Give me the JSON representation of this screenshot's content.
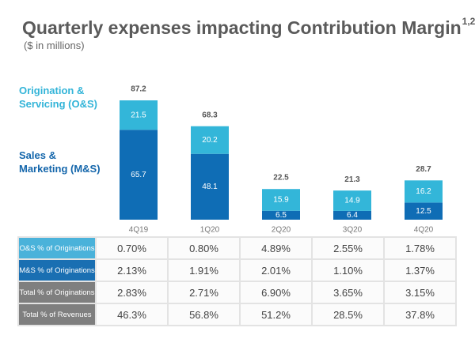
{
  "chart_data": {
    "type": "stacked-bar",
    "title": "Quarterly expenses impacting Contribution Margin",
    "title_note": "1,2",
    "subtitle": "($ in millions)",
    "categories": [
      "4Q19",
      "1Q20",
      "2Q20",
      "3Q20",
      "4Q20"
    ],
    "series": [
      {
        "name": "Sales & Marketing (M&S)",
        "color": "#0f6db5",
        "values": [
          65.7,
          48.1,
          6.5,
          6.4,
          12.5
        ]
      },
      {
        "name": "Origination & Servicing (O&S)",
        "color": "#33b6d9",
        "values": [
          21.5,
          20.2,
          15.9,
          14.9,
          16.2
        ]
      }
    ],
    "totals": [
      87.2,
      68.3,
      22.5,
      21.3,
      28.7
    ]
  },
  "table": {
    "rows": [
      {
        "label": "O&S % of Originations",
        "color": "#4ab2da",
        "values": [
          "0.70%",
          "0.80%",
          "4.89%",
          "2.55%",
          "1.78%"
        ]
      },
      {
        "label": "M&S % of Originations",
        "color": "#1a6fb2",
        "values": [
          "2.13%",
          "1.91%",
          "2.01%",
          "1.10%",
          "1.37%"
        ]
      },
      {
        "label": "Total % of Originations",
        "color": "#7f7f7f",
        "values": [
          "2.83%",
          "2.71%",
          "6.90%",
          "3.65%",
          "3.15%"
        ]
      },
      {
        "label": "Total % of Revenues",
        "color": "#7f7f7f",
        "values": [
          "46.3%",
          "56.8%",
          "51.2%",
          "28.5%",
          "37.8%"
        ]
      }
    ]
  }
}
